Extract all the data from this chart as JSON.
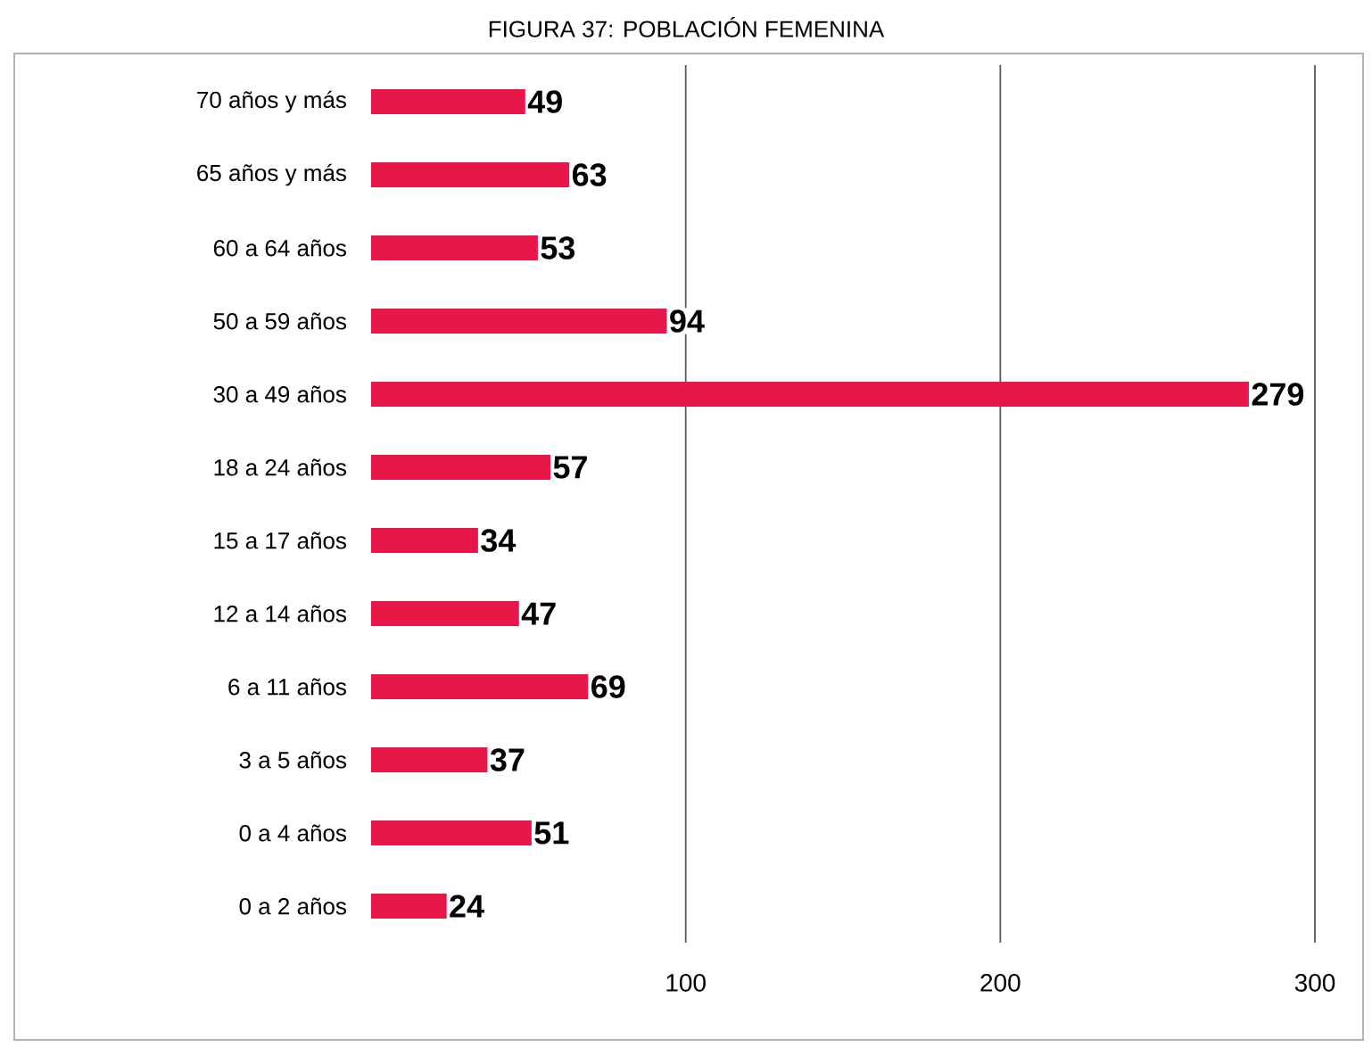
{
  "chart_data": {
    "type": "bar",
    "orientation": "horizontal",
    "title": "FIGURA 37: POBLACIÓN FEMENINA",
    "categories": [
      "70 años y más",
      "65 años y más",
      "60 a 64 años",
      "50 a 59 años",
      "30 a 49 años",
      "18 a 24 años",
      "15 a 17 años",
      "12 a 14 años",
      "6 a 11 años",
      "3 a 5 años",
      "0 a 4 años",
      "0 a 2 años"
    ],
    "values": [
      49,
      63,
      53,
      94,
      279,
      57,
      34,
      47,
      69,
      37,
      51,
      24
    ],
    "color": "#e8174a",
    "xlim": [
      0,
      300
    ],
    "xticks": [
      100,
      200,
      300
    ],
    "grid": "x",
    "data_labels": true
  }
}
